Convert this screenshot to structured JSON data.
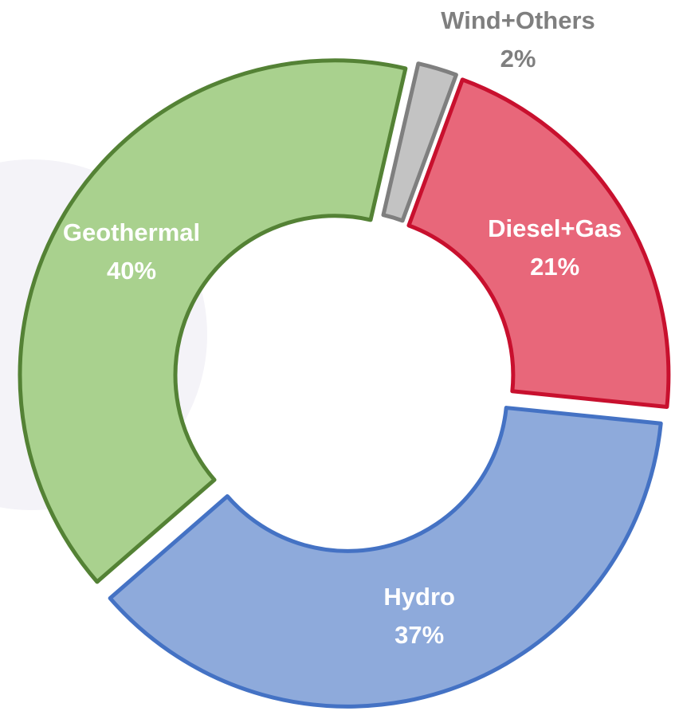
{
  "chart_data": {
    "type": "donut",
    "categories": [
      "Wind+Others",
      "Diesel+Gas",
      "Hydro",
      "Geothermal"
    ],
    "values": [
      2,
      21,
      37,
      40
    ],
    "value_labels": [
      "2%",
      "21%",
      "37%",
      "40%"
    ],
    "colors": [
      "#c3c3c3",
      "#e8677a",
      "#8eaadb",
      "#a9d18e"
    ],
    "edge_colors": [
      "#7f7f7f",
      "#c8102e",
      "#4472c4",
      "#548235"
    ]
  }
}
